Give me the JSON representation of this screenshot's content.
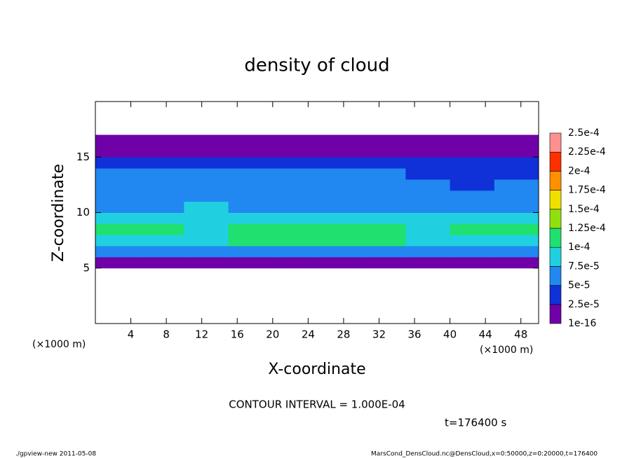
{
  "chart_data": {
    "type": "heatmap",
    "title": "density of cloud",
    "x_label": "X-coordinate",
    "y_label": "Z-coordinate",
    "axis_units": [
      "(×1000 m)",
      "(×1000 m)"
    ],
    "annotations": [
      "CONTOUR INTERVAL = 1.000E-04",
      "t=176400 s"
    ],
    "footer": [
      "./gpview-new  2011-05-08",
      "MarsCond_DensCloud.nc@DensCloud,x=0:50000,z=0:20000,t=176400"
    ],
    "x": [
      2.5,
      7.5,
      12.5,
      17.5,
      22.5,
      27.5,
      32.5,
      37.5,
      42.5,
      47.5
    ],
    "y": [
      0.5,
      1.5,
      2.5,
      3.5,
      4.5,
      5.5,
      6.5,
      7.5,
      8.5,
      9.5,
      10.5,
      11.5,
      12.5,
      13.5,
      14.5,
      15.5,
      16.5,
      17.5,
      18.5,
      19.5
    ],
    "cell_size": [
      5,
      1
    ],
    "values": [
      [
        null,
        null,
        null,
        null,
        null,
        null,
        null,
        null,
        null,
        null
      ],
      [
        null,
        null,
        null,
        null,
        null,
        null,
        null,
        null,
        null,
        null
      ],
      [
        null,
        null,
        null,
        null,
        null,
        null,
        null,
        null,
        null,
        null
      ],
      [
        null,
        null,
        null,
        null,
        null,
        null,
        null,
        null,
        null,
        null
      ],
      [
        null,
        null,
        null,
        null,
        null,
        null,
        null,
        null,
        null,
        null
      ],
      [
        5e-06,
        5e-06,
        5e-06,
        5e-06,
        5e-06,
        5e-06,
        5e-06,
        5e-06,
        5e-06,
        5e-06
      ],
      [
        5.5e-05,
        5e-05,
        5.5e-05,
        6e-05,
        6.5e-05,
        6.5e-05,
        6e-05,
        5.5e-05,
        5e-05,
        5.5e-05
      ],
      [
        9e-05,
        8.5e-05,
        9e-05,
        0.0001,
        0.000105,
        0.000105,
        0.0001,
        9e-05,
        8.5e-05,
        9.5e-05
      ],
      [
        0.000105,
        0.0001,
        9.5e-05,
        0.00011,
        0.000115,
        0.000115,
        0.00011,
        9.5e-05,
        0.0001,
        0.000105
      ],
      [
        8e-05,
        8.5e-05,
        8e-05,
        9e-05,
        9e-05,
        9e-05,
        8.5e-05,
        8e-05,
        7.5e-05,
        8e-05
      ],
      [
        6.5e-05,
        7e-05,
        7.5e-05,
        7e-05,
        6.5e-05,
        6.5e-05,
        6.5e-05,
        6e-05,
        6e-05,
        6.5e-05
      ],
      [
        6e-05,
        6.5e-05,
        7e-05,
        6e-05,
        6e-05,
        6e-05,
        6e-05,
        5.5e-05,
        5e-05,
        5.5e-05
      ],
      [
        5.5e-05,
        6e-05,
        6e-05,
        5.5e-05,
        5.5e-05,
        6e-05,
        5.5e-05,
        5e-05,
        4.5e-05,
        5e-05
      ],
      [
        5e-05,
        5.5e-05,
        5.5e-05,
        5e-05,
        5e-05,
        5e-05,
        5e-05,
        4.5e-05,
        4e-05,
        4.5e-05
      ],
      [
        4e-05,
        4e-05,
        4.5e-05,
        4e-05,
        4e-05,
        4e-05,
        4e-05,
        3.5e-05,
        3e-05,
        3.5e-05
      ],
      [
        2e-05,
        2e-05,
        2e-05,
        2e-05,
        2e-05,
        2e-05,
        2e-05,
        2e-05,
        2e-05,
        2e-05
      ],
      [
        3e-06,
        3e-06,
        3e-06,
        3e-06,
        3e-06,
        3e-06,
        3e-06,
        3e-06,
        3e-06,
        3e-06
      ],
      [
        null,
        null,
        null,
        null,
        null,
        null,
        null,
        null,
        null,
        null
      ],
      [
        null,
        null,
        null,
        null,
        null,
        null,
        null,
        null,
        null,
        null
      ],
      [
        null,
        null,
        null,
        null,
        null,
        null,
        null,
        null,
        null,
        null
      ]
    ],
    "levels": [
      {
        "value": 1e-16,
        "label": "1e-16"
      },
      {
        "value": 2.5e-05,
        "label": "2.5e-5"
      },
      {
        "value": 5e-05,
        "label": "5e-5"
      },
      {
        "value": 7.5e-05,
        "label": "7.5e-5"
      },
      {
        "value": 0.0001,
        "label": "1e-4"
      },
      {
        "value": 0.000125,
        "label": "1.25e-4"
      },
      {
        "value": 0.00015,
        "label": "1.5e-4"
      },
      {
        "value": 0.000175,
        "label": "1.75e-4"
      },
      {
        "value": 0.0002,
        "label": "2e-4"
      },
      {
        "value": 0.000225,
        "label": "2.25e-4"
      },
      {
        "value": 0.00025,
        "label": "2.5e-4"
      }
    ],
    "colors": [
      "#7000a8",
      "#1030d8",
      "#2088f0",
      "#20d0e0",
      "#20e070",
      "#90e010",
      "#f0e000",
      "#ff9000",
      "#ff3000",
      "#ff9090"
    ],
    "xlim": [
      0,
      50
    ],
    "xticks": [
      4,
      8,
      12,
      16,
      20,
      24,
      28,
      32,
      36,
      40,
      44,
      48
    ],
    "ylim": [
      0,
      20
    ],
    "yticks": [
      5,
      10,
      15
    ]
  }
}
